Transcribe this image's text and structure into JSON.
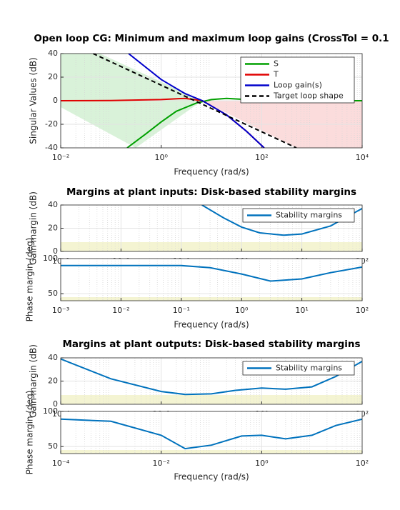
{
  "chart_data": [
    {
      "type": "line",
      "title": "Open loop CG: Minimum and maximum loop gains (CrossTol = 0.1",
      "xlabel": "Frequency (rad/s)",
      "ylabel": "Singular Values (dB)",
      "xscale": "log",
      "xlim": [
        0.01,
        10000
      ],
      "xticks": [
        {
          "value": 0.01,
          "label": "10⁻²"
        },
        {
          "value": 1,
          "label": "10⁰"
        },
        {
          "value": 100,
          "label": "10²"
        },
        {
          "value": 10000,
          "label": "10⁴"
        }
      ],
      "ylim": [
        -40,
        40
      ],
      "yticks": [
        -40,
        -20,
        0,
        20,
        40
      ],
      "grid": true,
      "legend": "northeast",
      "series": [
        {
          "name": "S",
          "color": "#00a000",
          "style": "solid",
          "x": [
            0.21,
            0.5,
            1,
            2,
            5,
            10,
            20,
            50,
            100,
            1000,
            10000
          ],
          "values": [
            -40,
            -28,
            -18,
            -9,
            -2,
            1,
            2,
            1,
            0.3,
            0,
            0
          ]
        },
        {
          "name": "T",
          "color": "#e00000",
          "style": "solid",
          "x": [
            0.01,
            0.1,
            1,
            3,
            6.6,
            20,
            50,
            112
          ],
          "values": [
            0,
            0.2,
            1,
            2,
            0,
            -12,
            -26,
            -40
          ]
        },
        {
          "name": "Loop gain(s)",
          "color": "#0000cc",
          "style": "solid",
          "x": [
            0.224,
            1,
            3,
            6.6,
            20,
            50,
            112
          ],
          "values": [
            40,
            18,
            6,
            0,
            -12,
            -26,
            -40
          ]
        },
        {
          "name": "Target loop shape",
          "color": "#000000",
          "style": "dashed",
          "x": [
            0.044,
            490
          ],
          "values": [
            40,
            -40
          ]
        }
      ]
    },
    {
      "type": "line",
      "title": "Margins at plant inputs: Disk-based stability margins",
      "ylabel": "Gain margin (dB)",
      "xscale": "log",
      "xlim": [
        0.001,
        100
      ],
      "xticks": [
        {
          "value": 0.001,
          "label": "10⁻³"
        },
        {
          "value": 0.01,
          "label": "10⁻²"
        },
        {
          "value": 0.1,
          "label": "10⁻¹"
        },
        {
          "value": 1,
          "label": "10⁰"
        },
        {
          "value": 10,
          "label": "10¹"
        },
        {
          "value": 100,
          "label": "10²"
        }
      ],
      "ylim": [
        0,
        40
      ],
      "yticks": [
        0,
        20,
        40
      ],
      "grid": true,
      "legend": "northeast",
      "series": [
        {
          "name": "Stability margins",
          "color": "#0072bd",
          "style": "solid",
          "x": [
            0.22,
            0.5,
            1,
            2,
            5,
            10,
            30,
            100
          ],
          "values": [
            40,
            29,
            21,
            16,
            14,
            15,
            22,
            37
          ]
        }
      ]
    },
    {
      "type": "line",
      "xlabel": "Frequency (rad/s)",
      "ylabel": "Phase margin (deg)",
      "xscale": "log",
      "xlim": [
        0.001,
        100
      ],
      "xticks": [
        {
          "value": 0.001,
          "label": "10⁻³"
        },
        {
          "value": 0.01,
          "label": "10⁻²"
        },
        {
          "value": 0.1,
          "label": "10⁻¹"
        },
        {
          "value": 1,
          "label": "10⁰"
        },
        {
          "value": 10,
          "label": "10¹"
        },
        {
          "value": 100,
          "label": "10²"
        }
      ],
      "ylim": [
        40,
        100
      ],
      "yticks": [
        50,
        100
      ],
      "grid": true,
      "series": [
        {
          "color": "#0072bd",
          "style": "solid",
          "x": [
            0.001,
            0.01,
            0.1,
            0.3,
            1,
            3,
            10,
            30,
            100
          ],
          "values": [
            90,
            90,
            90,
            87,
            78,
            68,
            71,
            80,
            88
          ]
        }
      ]
    },
    {
      "type": "line",
      "title": "Margins at plant outputs: Disk-based stability margins",
      "ylabel": "Gain margin (dB)",
      "xscale": "log",
      "xlim": [
        0.0001,
        100
      ],
      "xticks": [
        {
          "value": 0.0001,
          "label": "10⁻⁴"
        },
        {
          "value": 0.01,
          "label": "10⁻²"
        },
        {
          "value": 1,
          "label": "10⁰"
        },
        {
          "value": 100,
          "label": "10²"
        }
      ],
      "ylim": [
        0,
        40
      ],
      "yticks": [
        0,
        20,
        40
      ],
      "grid": true,
      "legend": "northeast",
      "series": [
        {
          "name": "Stability margins",
          "color": "#0072bd",
          "style": "solid",
          "x": [
            0.0001,
            0.001,
            0.01,
            0.03,
            0.1,
            0.3,
            1,
            3,
            10,
            30,
            100
          ],
          "values": [
            39,
            22,
            11,
            8.5,
            9,
            12,
            14,
            13,
            15,
            24,
            37
          ]
        }
      ]
    },
    {
      "type": "line",
      "xlabel": "Frequency (rad/s)",
      "ylabel": "Phase margin (deg)",
      "xscale": "log",
      "xlim": [
        0.0001,
        100
      ],
      "xticks": [
        {
          "value": 0.0001,
          "label": "10⁻⁴"
        },
        {
          "value": 0.01,
          "label": "10⁻²"
        },
        {
          "value": 1,
          "label": "10⁰"
        },
        {
          "value": 100,
          "label": "10²"
        }
      ],
      "ylim": [
        40,
        100
      ],
      "yticks": [
        50,
        100
      ],
      "grid": true,
      "series": [
        {
          "color": "#0072bd",
          "style": "solid",
          "x": [
            0.0001,
            0.001,
            0.01,
            0.03,
            0.1,
            0.4,
            1,
            3,
            10,
            30,
            100
          ],
          "values": [
            89,
            86,
            66,
            47,
            52,
            65,
            66,
            61,
            66,
            80,
            89
          ]
        }
      ]
    }
  ]
}
